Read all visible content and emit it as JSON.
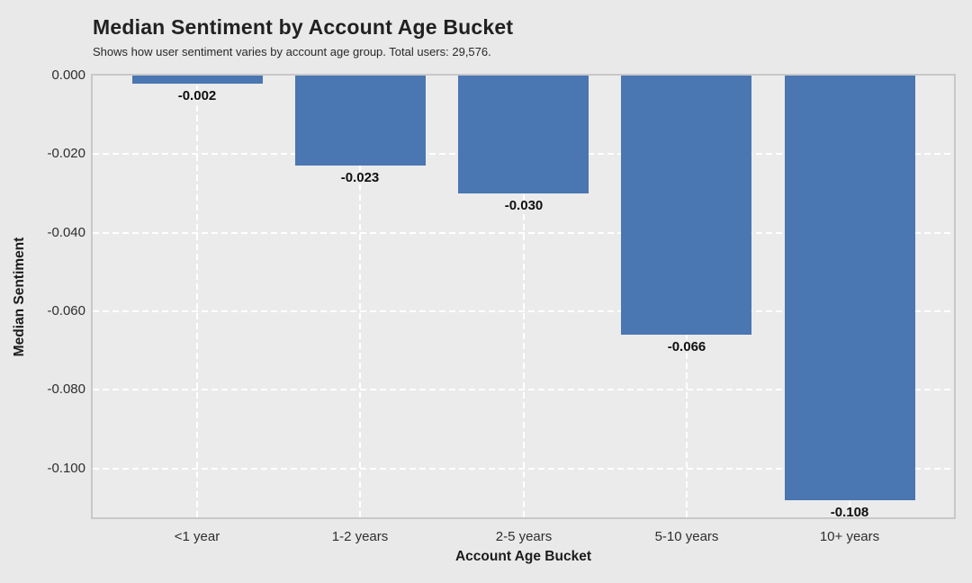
{
  "header": {
    "title": "Median Sentiment by Account Age Bucket",
    "subtitle": "Shows how user sentiment varies by account age group. Total users: 29,576."
  },
  "chart_data": {
    "type": "bar",
    "title": "Median Sentiment by Account Age Bucket",
    "subtitle": "Shows how user sentiment varies by account age group. Total users: 29,576.",
    "categories": [
      "<1 year",
      "1-2 years",
      "2-5 years",
      "5-10 years",
      "10+ years"
    ],
    "values": [
      -0.002,
      -0.023,
      -0.03,
      -0.066,
      -0.108
    ],
    "bar_labels": [
      "-0.002",
      "-0.023",
      "-0.030",
      "-0.066",
      "-0.108"
    ],
    "xlabel": "Account Age Bucket",
    "ylabel": "Median Sentiment",
    "ylim": [
      -0.1124,
      0
    ],
    "yticks": {
      "values": [
        0,
        -0.02,
        -0.04,
        -0.06,
        -0.08,
        -0.1
      ],
      "labels": [
        "0.000",
        "-0.020",
        "-0.040",
        "-0.060",
        "-0.080",
        "-0.100"
      ]
    },
    "grid": "dashed-white, on",
    "legend": "none",
    "colors": {
      "bar": "#4A76B2",
      "plot_background": "#EBEBEB",
      "figure_background": "#E9E9E9",
      "plot_border": "#C8C8C8",
      "gridline": "#FFFFFF",
      "title_text": "#212121",
      "tick_text": "#2E2E2E",
      "value_label_text": "#0F0F0F"
    }
  }
}
